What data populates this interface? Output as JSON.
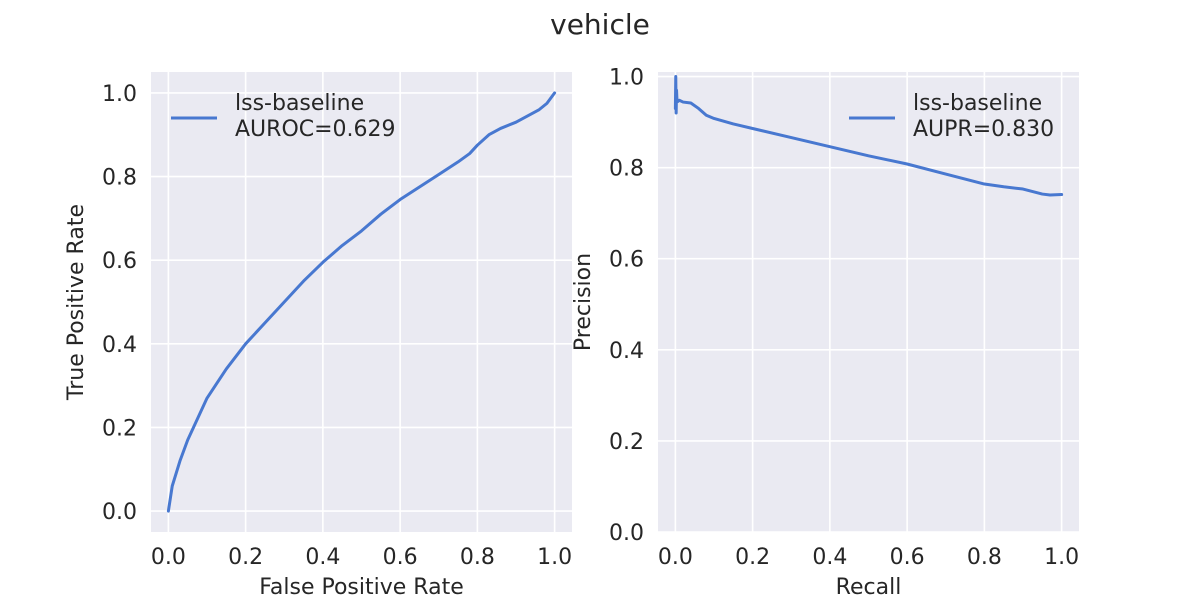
{
  "figure": {
    "suptitle": "vehicle"
  },
  "chart_data": [
    {
      "type": "line",
      "xlabel": "False Positive Rate",
      "ylabel": "True Positive Rate",
      "xlim": [
        -0.045,
        1.045
      ],
      "ylim": [
        -0.05,
        1.05
      ],
      "xticks": [
        "0.0",
        "0.2",
        "0.4",
        "0.6",
        "0.8",
        "1.0"
      ],
      "yticks": [
        "0.0",
        "0.2",
        "0.4",
        "0.6",
        "0.8",
        "1.0"
      ],
      "grid": true,
      "legend": {
        "placement": "upper-left",
        "entries": [
          "lss-baseline",
          "AUROC=0.629"
        ]
      },
      "series": [
        {
          "name": "lss-baseline",
          "color": "#4878d0",
          "x": [
            0.0,
            0.01,
            0.03,
            0.05,
            0.08,
            0.1,
            0.15,
            0.2,
            0.25,
            0.3,
            0.35,
            0.4,
            0.45,
            0.5,
            0.55,
            0.6,
            0.65,
            0.7,
            0.75,
            0.78,
            0.8,
            0.83,
            0.86,
            0.9,
            0.93,
            0.96,
            0.98,
            1.0
          ],
          "y": [
            0.0,
            0.06,
            0.12,
            0.17,
            0.23,
            0.27,
            0.34,
            0.4,
            0.45,
            0.5,
            0.55,
            0.595,
            0.635,
            0.67,
            0.71,
            0.745,
            0.775,
            0.805,
            0.835,
            0.855,
            0.875,
            0.9,
            0.915,
            0.93,
            0.945,
            0.96,
            0.975,
            1.0
          ]
        }
      ]
    },
    {
      "type": "line",
      "xlabel": "Recall",
      "ylabel": "Precision",
      "xlim": [
        -0.045,
        1.045
      ],
      "ylim": [
        0.0,
        1.01
      ],
      "xticks": [
        "0.0",
        "0.2",
        "0.4",
        "0.6",
        "0.8",
        "1.0"
      ],
      "yticks": [
        "0.0",
        "0.2",
        "0.4",
        "0.6",
        "0.8",
        "1.0"
      ],
      "grid": true,
      "legend": {
        "placement": "upper-right",
        "entries": [
          "lss-baseline",
          "AUPR=0.830"
        ]
      },
      "series": [
        {
          "name": "lss-baseline",
          "color": "#4878d0",
          "x": [
            0.0,
            0.001,
            0.002,
            0.003,
            0.004,
            0.006,
            0.01,
            0.02,
            0.04,
            0.06,
            0.08,
            0.1,
            0.15,
            0.2,
            0.3,
            0.4,
            0.5,
            0.6,
            0.7,
            0.8,
            0.85,
            0.9,
            0.95,
            0.97,
            1.0
          ],
          "y": [
            0.93,
            1.0,
            0.92,
            0.97,
            0.95,
            0.945,
            0.948,
            0.944,
            0.942,
            0.93,
            0.915,
            0.908,
            0.896,
            0.886,
            0.866,
            0.846,
            0.826,
            0.808,
            0.786,
            0.764,
            0.758,
            0.753,
            0.742,
            0.74,
            0.741
          ]
        }
      ]
    }
  ]
}
